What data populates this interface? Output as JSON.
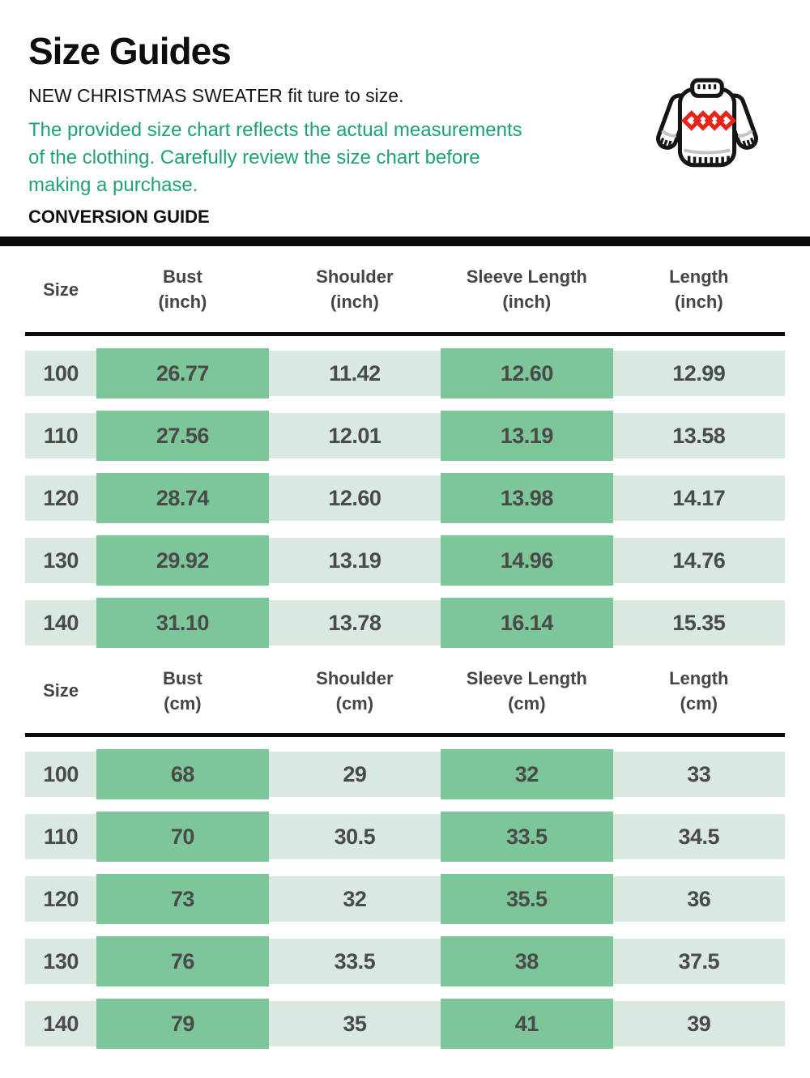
{
  "header": {
    "title": "Size Guides",
    "subtitle": "NEW CHRISTMAS SWEATER fit ture to size.",
    "note_lines": [
      "The provided size chart reflects the actual measurements",
      "of the clothing. Carefully review the size chart before",
      "making a purchase."
    ],
    "section_label": "CONVERSION GUIDE"
  },
  "icon": {
    "name": "christmas-sweater-icon",
    "outline_color": "#151515",
    "pattern_color": "#e8231a",
    "shading_color": "#c4c4c4"
  },
  "colors": {
    "note_green": "#1ea26f",
    "cell_green_dark": "#7dc69a",
    "cell_green_light": "#d9e9df",
    "divider_black": "#0b0b0b",
    "table_text": "#4a4a4a"
  },
  "highlighted_columns": [
    "Bust",
    "Sleeve Length"
  ],
  "tables": [
    {
      "id": "inch",
      "columns": [
        {
          "label": "Size",
          "unit": ""
        },
        {
          "label": "Bust",
          "unit": "(inch)"
        },
        {
          "label": "Shoulder",
          "unit": "(inch)"
        },
        {
          "label": "Sleeve Length",
          "unit": "(inch)"
        },
        {
          "label": "Length",
          "unit": "(inch)"
        }
      ],
      "rows": [
        {
          "size": "100",
          "values": [
            "26.77",
            "11.42",
            "12.60",
            "12.99"
          ]
        },
        {
          "size": "110",
          "values": [
            "27.56",
            "12.01",
            "13.19",
            "13.58"
          ]
        },
        {
          "size": "120",
          "values": [
            "28.74",
            "12.60",
            "13.98",
            "14.17"
          ]
        },
        {
          "size": "130",
          "values": [
            "29.92",
            "13.19",
            "14.96",
            "14.76"
          ]
        },
        {
          "size": "140",
          "values": [
            "31.10",
            "13.78",
            "16.14",
            "15.35"
          ]
        }
      ]
    },
    {
      "id": "cm",
      "columns": [
        {
          "label": "Size",
          "unit": ""
        },
        {
          "label": "Bust",
          "unit": "(cm)"
        },
        {
          "label": "Shoulder",
          "unit": "(cm)"
        },
        {
          "label": "Sleeve Length",
          "unit": "(cm)"
        },
        {
          "label": "Length",
          "unit": "(cm)"
        }
      ],
      "rows": [
        {
          "size": "100",
          "values": [
            "68",
            "29",
            "32",
            "33"
          ]
        },
        {
          "size": "110",
          "values": [
            "70",
            "30.5",
            "33.5",
            "34.5"
          ]
        },
        {
          "size": "120",
          "values": [
            "73",
            "32",
            "35.5",
            "36"
          ]
        },
        {
          "size": "130",
          "values": [
            "76",
            "33.5",
            "38",
            "37.5"
          ]
        },
        {
          "size": "140",
          "values": [
            "79",
            "35",
            "41",
            "39"
          ]
        }
      ]
    }
  ]
}
